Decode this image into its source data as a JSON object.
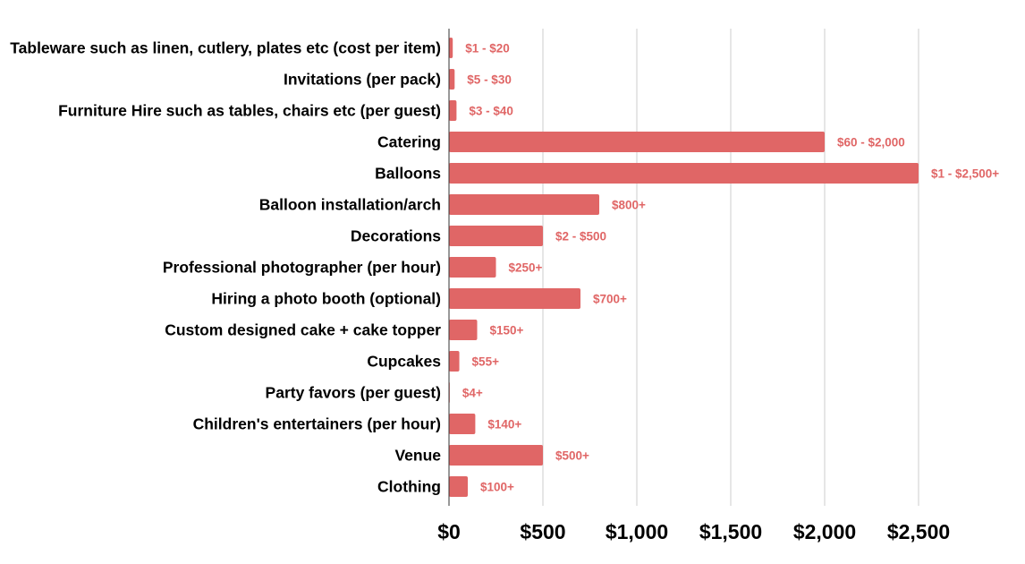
{
  "chart_data": {
    "type": "bar",
    "orientation": "horizontal",
    "title": "",
    "xlabel": "",
    "ylabel": "",
    "xlim": [
      0,
      2500
    ],
    "grid": true,
    "legend": "none",
    "bar_color": "#e06666",
    "label_color": "#e06666",
    "categories": [
      "Tableware such as linen, cutlery, plates etc (cost per item)",
      "Invitations (per pack)",
      "Furniture Hire such as tables, chairs etc (per guest)",
      "Catering",
      "Balloons",
      "Balloon installation/arch",
      "Decorations",
      "Professional photographer (per hour)",
      "Hiring a photo booth (optional)",
      "Custom designed cake + cake topper",
      "Cupcakes",
      "Party favors (per guest)",
      "Children's entertainers (per hour)",
      "Venue",
      "Clothing"
    ],
    "values": [
      20,
      30,
      40,
      2000,
      2500,
      800,
      500,
      250,
      700,
      150,
      55,
      4,
      140,
      500,
      100
    ],
    "data_labels": [
      "$1 - $20",
      "$5 - $30",
      "$3 - $40",
      "$60 - $2,000",
      "$1 - $2,500+",
      "$800+",
      "$2 - $500",
      "$250+",
      "$700+",
      "$150+",
      "$55+",
      "$4+",
      "$140+",
      "$500+",
      "$100+"
    ],
    "x_ticks": [
      0,
      500,
      1000,
      1500,
      2000,
      2500
    ],
    "x_tick_labels": [
      "$0",
      "$500",
      "$1,000",
      "$1,500",
      "$2,000",
      "$2,500"
    ]
  }
}
